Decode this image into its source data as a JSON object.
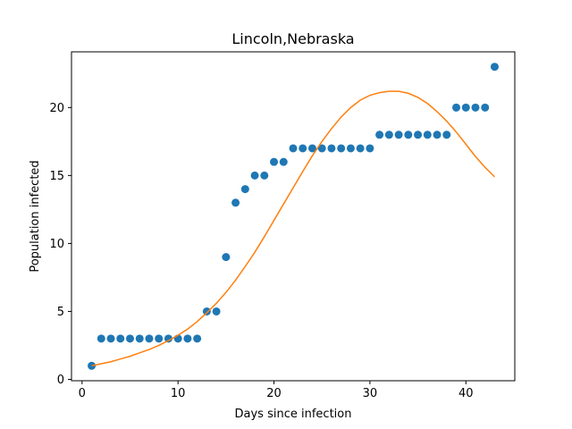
{
  "chart_data": {
    "type": "scatter",
    "title": "Lincoln,Nebraska",
    "xlabel": "Days since infection",
    "ylabel": "Population infected",
    "xlim": [
      -1.1,
      45.1
    ],
    "ylim": [
      -0.1,
      24.1
    ],
    "xticks": [
      0,
      10,
      20,
      30,
      40
    ],
    "yticks": [
      0,
      5,
      10,
      15,
      20
    ],
    "grid": false,
    "series": [
      {
        "kind": "scatter",
        "color": "#1f77b4",
        "x": [
          1,
          2,
          3,
          4,
          5,
          6,
          7,
          8,
          9,
          10,
          11,
          12,
          13,
          14,
          15,
          16,
          17,
          18,
          19,
          20,
          21,
          22,
          23,
          24,
          25,
          26,
          27,
          28,
          29,
          30,
          31,
          32,
          33,
          34,
          35,
          36,
          37,
          38,
          39,
          40,
          41,
          42,
          43
        ],
        "y": [
          1,
          3,
          3,
          3,
          3,
          3,
          3,
          3,
          3,
          3,
          3,
          3,
          5,
          5,
          9,
          13,
          14,
          15,
          15,
          16,
          16,
          17,
          17,
          17,
          17,
          17,
          17,
          17,
          17,
          17,
          18,
          18,
          18,
          18,
          18,
          18,
          18,
          18,
          20,
          20,
          20,
          20,
          23
        ]
      },
      {
        "kind": "line",
        "color": "#ff7f0e",
        "x": [
          1,
          2,
          3,
          4,
          5,
          6,
          7,
          8,
          9,
          10,
          11,
          12,
          13,
          14,
          15,
          16,
          17,
          18,
          19,
          20,
          21,
          22,
          23,
          24,
          25,
          26,
          27,
          28,
          29,
          30,
          31,
          32,
          33,
          34,
          35,
          36,
          37,
          38,
          39,
          40,
          41,
          42,
          43
        ],
        "y": [
          1.0,
          1.15,
          1.3,
          1.5,
          1.7,
          1.95,
          2.2,
          2.5,
          2.85,
          3.25,
          3.7,
          4.25,
          4.9,
          5.6,
          6.4,
          7.3,
          8.3,
          9.35,
          10.5,
          11.7,
          12.9,
          14.1,
          15.3,
          16.45,
          17.5,
          18.45,
          19.3,
          20.0,
          20.55,
          20.9,
          21.1,
          21.2,
          21.2,
          21.05,
          20.75,
          20.3,
          19.7,
          19.0,
          18.2,
          17.3,
          16.4,
          15.6,
          14.9
        ]
      }
    ]
  }
}
